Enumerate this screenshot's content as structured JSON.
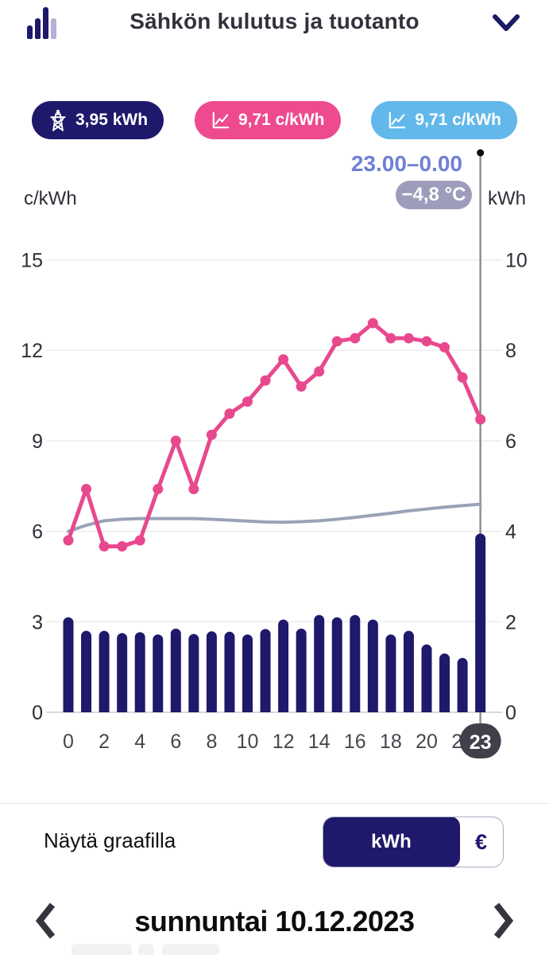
{
  "header": {
    "title": "Sähkön kulutus ja tuotanto"
  },
  "badges": [
    {
      "icon": "pylon-icon",
      "label": "3,95 kWh",
      "bg": "#1e196b"
    },
    {
      "icon": "line-chart-icon",
      "label": "9,71 c/kWh",
      "bg": "#ee4a90"
    },
    {
      "icon": "line-chart-icon",
      "label": "9,71 c/kWh",
      "bg": "#62b8ea"
    }
  ],
  "tooltip": {
    "time_range": "23.00–0.00",
    "temperature": "−4,8 °C"
  },
  "chart_data": {
    "type": "combo-bar-line",
    "left_axis": {
      "label": "c/kWh",
      "ticks": [
        0,
        3,
        6,
        9,
        12,
        15
      ],
      "range": [
        0,
        15
      ]
    },
    "right_axis": {
      "label": "kWh",
      "ticks": [
        0,
        2,
        4,
        6,
        8,
        10
      ],
      "range": [
        0,
        10
      ]
    },
    "x_tick_labels": [
      "0",
      "2",
      "4",
      "6",
      "8",
      "10",
      "12",
      "14",
      "16",
      "18",
      "20",
      "22"
    ],
    "hours": [
      0,
      1,
      2,
      3,
      4,
      5,
      6,
      7,
      8,
      9,
      10,
      11,
      12,
      13,
      14,
      15,
      16,
      17,
      18,
      19,
      20,
      21,
      22,
      23
    ],
    "series": [
      {
        "name": "consumption_kwh",
        "type": "bar",
        "axis": "right",
        "color": "#1e196b",
        "values": [
          2.1,
          1.8,
          1.8,
          1.75,
          1.77,
          1.72,
          1.85,
          1.73,
          1.79,
          1.78,
          1.72,
          1.84,
          2.05,
          1.85,
          2.15,
          2.1,
          2.15,
          2.05,
          1.72,
          1.8,
          1.5,
          1.3,
          1.2,
          3.95
        ]
      },
      {
        "name": "spot_price_c_per_kwh",
        "type": "line",
        "axis": "left",
        "color": "#e8498e",
        "values": [
          5.7,
          7.4,
          5.5,
          5.5,
          5.7,
          7.4,
          9.0,
          7.4,
          9.2,
          9.9,
          10.3,
          11.0,
          11.7,
          10.8,
          11.3,
          12.3,
          12.4,
          12.9,
          12.4,
          12.4,
          12.3,
          12.1,
          11.1,
          9.71
        ]
      },
      {
        "name": "avg_price_c_per_kwh",
        "type": "line",
        "axis": "left",
        "color": "#9aa2b8",
        "values": [
          6.0,
          6.2,
          6.35,
          6.4,
          6.42,
          6.42,
          6.42,
          6.42,
          6.4,
          6.37,
          6.34,
          6.31,
          6.3,
          6.32,
          6.35,
          6.4,
          6.46,
          6.53,
          6.6,
          6.68,
          6.74,
          6.8,
          6.85,
          6.9
        ]
      }
    ],
    "selected": {
      "hour": 23,
      "hour_label": "23",
      "consumption_kwh": "3,95 kWh",
      "price": "9,71 c/kWh",
      "badge_bg": "#40404a"
    },
    "grid": true,
    "colors": {
      "gridline": "#ededf0",
      "baseline": "#d9d9dc",
      "axis_text": "#2e2e38",
      "x_text": "#46464e",
      "selection_line": "#90909a"
    }
  },
  "controls": {
    "label": "Näytä graafilla",
    "options": [
      {
        "label": "kWh",
        "selected": true
      },
      {
        "label": "€",
        "selected": false
      }
    ]
  },
  "date_nav": {
    "label": "sunnuntai 10.12.2023"
  }
}
